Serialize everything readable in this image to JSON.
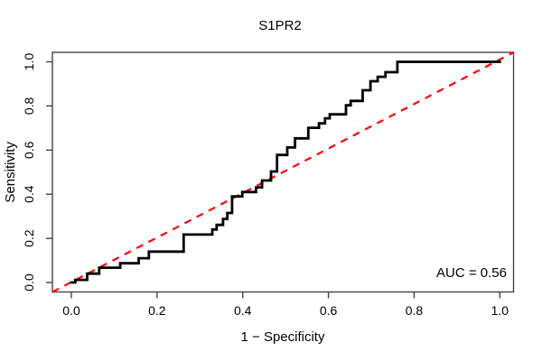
{
  "window": {
    "title": "S1PR2"
  },
  "colors": {
    "background": "#ffffff",
    "roc_curve": "#000000",
    "chance_line": "#fb0007",
    "axis": "#444444",
    "text": "#000000"
  },
  "chart_data": {
    "type": "line",
    "subtype": "roc-step-curve",
    "title": "S1PR2",
    "xlabel": "1 − Specificity",
    "ylabel": "Sensitivity",
    "xlim": [
      0,
      1
    ],
    "ylim": [
      0,
      1
    ],
    "x_ticks": [
      "0.0",
      "0.2",
      "0.4",
      "0.6",
      "0.8",
      "1.0"
    ],
    "y_ticks": [
      "0.0",
      "0.2",
      "0.4",
      "0.6",
      "0.8",
      "1.0"
    ],
    "x_tick_values": [
      0,
      0.2,
      0.4,
      0.6,
      0.8,
      1.0
    ],
    "y_tick_values": [
      0,
      0.2,
      0.4,
      0.6,
      0.8,
      1.0
    ],
    "grid": false,
    "annotation": "AUC = 0.56",
    "auc": 0.56,
    "series": [
      {
        "name": "ROC curve (S1PR2)",
        "style": "step-solid",
        "color": "#000000",
        "points": [
          [
            0.0,
            0.0
          ],
          [
            0.009,
            0.012
          ],
          [
            0.037,
            0.04
          ],
          [
            0.065,
            0.067
          ],
          [
            0.114,
            0.087
          ],
          [
            0.157,
            0.11
          ],
          [
            0.181,
            0.14
          ],
          [
            0.262,
            0.217
          ],
          [
            0.329,
            0.24
          ],
          [
            0.339,
            0.261
          ],
          [
            0.354,
            0.288
          ],
          [
            0.364,
            0.315
          ],
          [
            0.375,
            0.39
          ],
          [
            0.399,
            0.41
          ],
          [
            0.431,
            0.431
          ],
          [
            0.445,
            0.462
          ],
          [
            0.466,
            0.503
          ],
          [
            0.48,
            0.578
          ],
          [
            0.504,
            0.612
          ],
          [
            0.522,
            0.653
          ],
          [
            0.553,
            0.701
          ],
          [
            0.578,
            0.721
          ],
          [
            0.592,
            0.744
          ],
          [
            0.603,
            0.762
          ],
          [
            0.641,
            0.803
          ],
          [
            0.652,
            0.823
          ],
          [
            0.68,
            0.871
          ],
          [
            0.698,
            0.912
          ],
          [
            0.715,
            0.932
          ],
          [
            0.733,
            0.953
          ],
          [
            0.761,
            1.0
          ],
          [
            1.0,
            1.0
          ]
        ]
      },
      {
        "name": "chance diagonal",
        "style": "dashed",
        "color": "#fb0007",
        "points": [
          [
            0,
            0
          ],
          [
            1,
            1
          ]
        ]
      }
    ],
    "legend": null
  }
}
